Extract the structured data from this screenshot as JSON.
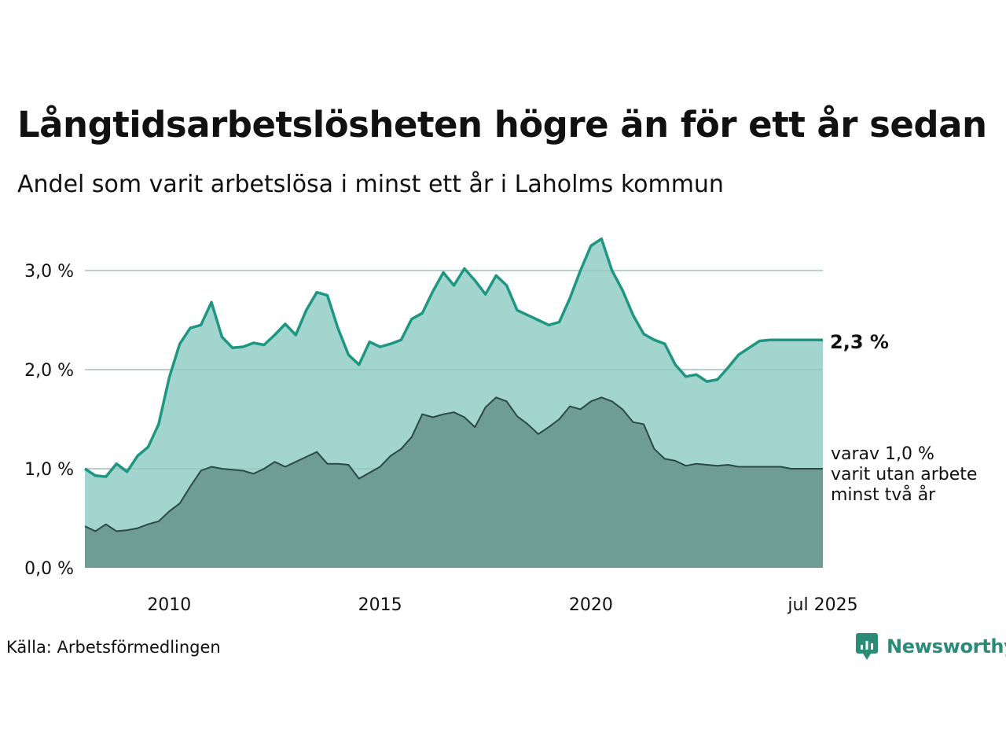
{
  "title": "Långtidsarbetslösheten högre än för ett år sedan",
  "subtitle": "Andel som varit arbetslösa i minst ett år i Laholms kommun",
  "source": "Källa: Arbetsförmedlingen",
  "brand": "Newsworthy",
  "end_label_total": "2,3 %",
  "end_label_sub_lines": [
    "varav 1,0 %",
    "varit utan arbete",
    "minst två år"
  ],
  "colors": {
    "total_fill": "#a3d5cf",
    "total_line": "#1f9682",
    "sub_fill": "#6f9c95",
    "sub_line": "#2c4a45",
    "grid": "#dddddd",
    "brand": "#2a8c77"
  },
  "chart_data": {
    "type": "area",
    "x_ticks": [
      "2010",
      "2015",
      "2020",
      "jul 2025"
    ],
    "x_tick_values": [
      2010.0,
      2015.0,
      2020.0,
      2025.5
    ],
    "xlim": [
      2008.0,
      2025.5
    ],
    "y_ticks": [
      "0,0 %",
      "1,0 %",
      "2,0 %",
      "3,0 %"
    ],
    "y_tick_values": [
      0,
      1,
      2,
      3
    ],
    "ylim": [
      0,
      3.0
    ],
    "grid": true,
    "series": [
      {
        "role": "total",
        "x": [
          2008.0,
          2008.25,
          2008.5,
          2008.75,
          2009.0,
          2009.25,
          2009.5,
          2009.75,
          2010.0,
          2010.25,
          2010.5,
          2010.75,
          2011.0,
          2011.25,
          2011.5,
          2011.75,
          2012.0,
          2012.25,
          2012.5,
          2012.75,
          2013.0,
          2013.25,
          2013.5,
          2013.75,
          2014.0,
          2014.25,
          2014.5,
          2014.75,
          2015.0,
          2015.25,
          2015.5,
          2015.75,
          2016.0,
          2016.25,
          2016.5,
          2016.75,
          2017.0,
          2017.25,
          2017.5,
          2017.75,
          2018.0,
          2018.25,
          2018.5,
          2018.75,
          2019.0,
          2019.25,
          2019.5,
          2019.75,
          2020.0,
          2020.25,
          2020.5,
          2020.75,
          2021.0,
          2021.25,
          2021.5,
          2021.75,
          2022.0,
          2022.25,
          2022.5,
          2022.75,
          2023.0,
          2023.25,
          2023.5,
          2023.75,
          2024.0,
          2024.25,
          2024.5,
          2024.75,
          2025.0,
          2025.25,
          2025.5
        ],
        "values": [
          1.0,
          0.93,
          0.92,
          1.05,
          0.97,
          1.13,
          1.22,
          1.45,
          1.92,
          2.26,
          2.42,
          2.45,
          2.68,
          2.33,
          2.22,
          2.23,
          2.27,
          2.25,
          2.35,
          2.46,
          2.35,
          2.6,
          2.78,
          2.75,
          2.42,
          2.15,
          2.05,
          2.28,
          2.23,
          2.26,
          2.3,
          2.51,
          2.57,
          2.79,
          2.98,
          2.85,
          3.02,
          2.9,
          2.76,
          2.95,
          2.85,
          2.6,
          2.55,
          2.5,
          2.45,
          2.48,
          2.72,
          3.0,
          3.25,
          3.32,
          3.0,
          2.8,
          2.55,
          2.36,
          2.3,
          2.26,
          2.05,
          1.93,
          1.95,
          1.88,
          1.9,
          2.02,
          2.15,
          2.22,
          2.29,
          2.3,
          2.3,
          2.3,
          2.3,
          2.3,
          2.3
        ]
      },
      {
        "role": "sub",
        "x": [
          2008.0,
          2008.25,
          2008.5,
          2008.75,
          2009.0,
          2009.25,
          2009.5,
          2009.75,
          2010.0,
          2010.25,
          2010.5,
          2010.75,
          2011.0,
          2011.25,
          2011.5,
          2011.75,
          2012.0,
          2012.25,
          2012.5,
          2012.75,
          2013.0,
          2013.25,
          2013.5,
          2013.75,
          2014.0,
          2014.25,
          2014.5,
          2014.75,
          2015.0,
          2015.25,
          2015.5,
          2015.75,
          2016.0,
          2016.25,
          2016.5,
          2016.75,
          2017.0,
          2017.25,
          2017.5,
          2017.75,
          2018.0,
          2018.25,
          2018.5,
          2018.75,
          2019.0,
          2019.25,
          2019.5,
          2019.75,
          2020.0,
          2020.25,
          2020.5,
          2020.75,
          2021.0,
          2021.25,
          2021.5,
          2021.75,
          2022.0,
          2022.25,
          2022.5,
          2022.75,
          2023.0,
          2023.25,
          2023.5,
          2023.75,
          2024.0,
          2024.25,
          2024.5,
          2024.75,
          2025.0,
          2025.25,
          2025.5
        ],
        "values": [
          0.42,
          0.37,
          0.44,
          0.37,
          0.38,
          0.4,
          0.44,
          0.47,
          0.57,
          0.65,
          0.82,
          0.98,
          1.02,
          1.0,
          0.99,
          0.98,
          0.95,
          1.0,
          1.07,
          1.02,
          1.07,
          1.12,
          1.17,
          1.05,
          1.05,
          1.04,
          0.9,
          0.96,
          1.02,
          1.13,
          1.2,
          1.32,
          1.55,
          1.52,
          1.55,
          1.57,
          1.52,
          1.42,
          1.62,
          1.72,
          1.68,
          1.53,
          1.45,
          1.35,
          1.42,
          1.5,
          1.63,
          1.6,
          1.68,
          1.72,
          1.68,
          1.6,
          1.47,
          1.45,
          1.2,
          1.1,
          1.08,
          1.03,
          1.05,
          1.04,
          1.03,
          1.04,
          1.02,
          1.02,
          1.02,
          1.02,
          1.02,
          1.0,
          1.0,
          1.0,
          1.0
        ]
      }
    ]
  }
}
